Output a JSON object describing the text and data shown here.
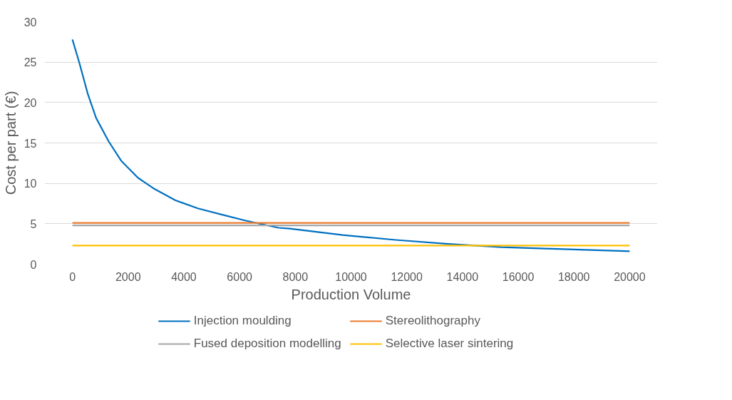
{
  "chart_data": {
    "type": "line",
    "xlabel": "Production Volume",
    "ylabel": "Cost per part (€)",
    "xlim": [
      -1000,
      21000
    ],
    "xticks": [
      0,
      2000,
      4000,
      6000,
      8000,
      10000,
      12000,
      14000,
      16000,
      18000,
      20000
    ],
    "ylim": [
      0,
      30
    ],
    "yticks": [
      0,
      5,
      10,
      15,
      20,
      25,
      30
    ],
    "grid": "y",
    "legend": "bottom",
    "marker": "none",
    "line_style": "solid",
    "series": [
      {
        "name": "Injection moulding",
        "color": "#0070c0",
        "x": [
          0,
          250,
          550,
          850,
          1300,
          1750,
          2350,
          2900,
          3700,
          4500,
          5400,
          6200,
          7400,
          7800,
          9700,
          11600,
          13500,
          15400,
          17200,
          20000
        ],
        "values": [
          27.8,
          24.9,
          21.1,
          18.1,
          15.2,
          12.8,
          10.7,
          9.4,
          7.9,
          6.9,
          6.1,
          5.4,
          4.5,
          4.4,
          3.6,
          3.0,
          2.5,
          2.1,
          1.9,
          1.6
        ]
      },
      {
        "name": "Stereolithography",
        "color": "#ed7d31",
        "x": [
          0,
          20000
        ],
        "values": [
          5.1,
          5.1
        ]
      },
      {
        "name": "Fused deposition modelling",
        "color": "#a5a5a5",
        "x": [
          0,
          20000
        ],
        "values": [
          4.8,
          4.8
        ]
      },
      {
        "name": "Selective laser sintering",
        "color": "#ffc000",
        "x": [
          0,
          20000
        ],
        "values": [
          2.3,
          2.3
        ]
      }
    ]
  }
}
